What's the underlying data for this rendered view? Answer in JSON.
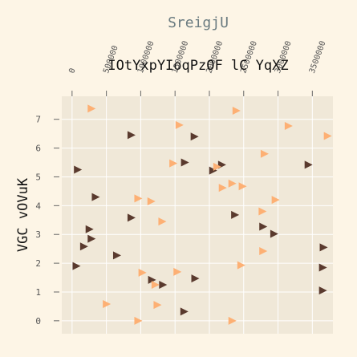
{
  "chart_data": {
    "type": "scatter",
    "title": "IOtYxpYIoqPzOF lC YqXZ",
    "xlabel": "SreigjU",
    "ylabel": "VGC vOVuK",
    "xlim": [
      -150000,
      3800000
    ],
    "ylim": [
      -0.45,
      7.8
    ],
    "x_ticks": [
      0,
      500000,
      1000000,
      1500000,
      2000000,
      2500000,
      3000000,
      3500000
    ],
    "x_tick_labels": [
      "0",
      "500000",
      "1000000",
      "1500000",
      "2000000",
      "2500000",
      "3000000",
      "3500000"
    ],
    "y_ticks": [
      0,
      1,
      2,
      3,
      4,
      5,
      6,
      7
    ],
    "y_tick_labels": [
      "0",
      "1",
      "2",
      "3",
      "4",
      "5",
      "6",
      "7"
    ],
    "grid": true,
    "marker": "triangle-right",
    "colors": {
      "dark": "#5a3a2e",
      "orange": "#fdb074",
      "plot_bg": "#f0e8d8",
      "grid": "#ffffff",
      "page_bg": "#fdf5e6"
    },
    "series": [
      {
        "color": "#5a3a2e",
        "points": [
          [
            80000,
            5.25
          ],
          [
            340000,
            4.3
          ],
          [
            860000,
            6.45
          ],
          [
            1780000,
            6.4
          ],
          [
            1640000,
            5.5
          ],
          [
            2050000,
            5.22
          ],
          [
            2180000,
            5.42
          ],
          [
            3440000,
            5.42
          ],
          [
            860000,
            3.58
          ],
          [
            2370000,
            3.68
          ],
          [
            250000,
            3.18
          ],
          [
            280000,
            2.85
          ],
          [
            170000,
            2.58
          ],
          [
            2780000,
            3.27
          ],
          [
            2940000,
            3.02
          ],
          [
            3660000,
            2.55
          ],
          [
            650000,
            2.27
          ],
          [
            60000,
            1.9
          ],
          [
            3650000,
            1.85
          ],
          [
            1160000,
            1.42
          ],
          [
            1320000,
            1.25
          ],
          [
            1790000,
            1.47
          ],
          [
            3650000,
            1.05
          ],
          [
            1630000,
            0.32
          ]
        ]
      },
      {
        "color": "#fdb074",
        "points": [
          [
            280000,
            7.37
          ],
          [
            2390000,
            7.3
          ],
          [
            1560000,
            6.8
          ],
          [
            3150000,
            6.77
          ],
          [
            3720000,
            6.42
          ],
          [
            2800000,
            5.8
          ],
          [
            1470000,
            5.47
          ],
          [
            2110000,
            5.35
          ],
          [
            2330000,
            4.77
          ],
          [
            2480000,
            4.67
          ],
          [
            2190000,
            4.62
          ],
          [
            960000,
            4.25
          ],
          [
            1150000,
            4.15
          ],
          [
            2960000,
            4.2
          ],
          [
            2770000,
            3.8
          ],
          [
            1310000,
            3.45
          ],
          [
            2780000,
            2.42
          ],
          [
            2460000,
            1.93
          ],
          [
            1020000,
            1.67
          ],
          [
            1530000,
            1.7
          ],
          [
            1210000,
            1.25
          ],
          [
            500000,
            0.58
          ],
          [
            1240000,
            0.55
          ],
          [
            960000,
            0.0
          ],
          [
            2330000,
            0.0
          ]
        ]
      }
    ]
  }
}
